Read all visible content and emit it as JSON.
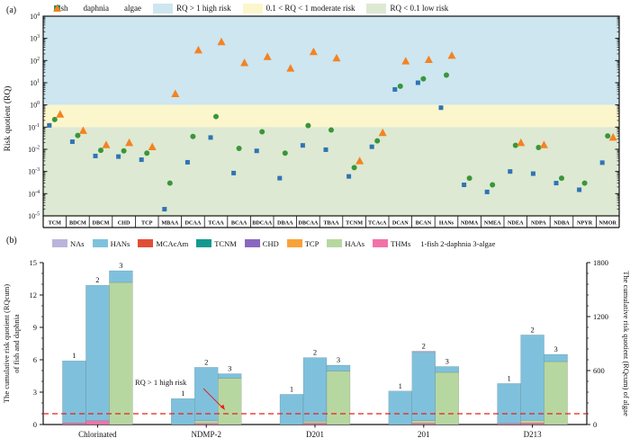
{
  "figure": {
    "panel_a_tag": "(a)",
    "panel_b_tag": "(b)"
  },
  "colors": {
    "fish": "#2f74b3",
    "daphnia": "#3a9639",
    "algae": "#f58220",
    "band_high": "#cde6f0",
    "band_moderate": "#fcf6cd",
    "band_low": "#dde9d3",
    "ref_line_red": "#e62219",
    "components": {
      "NAs": "#bab4da",
      "HANs": "#7fc1dc",
      "MCAcAm": "#e04f35",
      "TCNM": "#12998e",
      "CHD": "#8a68c0",
      "TCP": "#f9a23a",
      "HAAs": "#b7d7a1",
      "THMs": "#f272a8"
    }
  },
  "chart_data": [
    {
      "type": "scatter",
      "title": "",
      "ylabel": "Risk quotient (RQ)",
      "y_scale": "log",
      "y_tick_exponents": [
        4,
        3,
        2,
        1,
        0,
        -1,
        -2,
        -3,
        -4,
        -5
      ],
      "ylim_exponents": [
        -5,
        4
      ],
      "bands": [
        {
          "label": "RQ > 1 high risk",
          "from_exp": 0,
          "to_exp": 4
        },
        {
          "label": "0.1 < RQ < 1 moderate risk",
          "from_exp": -1,
          "to_exp": 0
        },
        {
          "label": "RQ < 0.1 low risk",
          "from_exp": -5,
          "to_exp": -1
        }
      ],
      "legend": [
        {
          "label": "fish",
          "marker": "square"
        },
        {
          "label": "daphnia",
          "marker": "circle"
        },
        {
          "label": "algae",
          "marker": "triangle"
        },
        {
          "label": "RQ > 1 high risk",
          "marker": "band_high"
        },
        {
          "label": "0.1 < RQ < 1 moderate risk",
          "marker": "band_moderate"
        },
        {
          "label": "RQ < 0.1 low risk",
          "marker": "band_low"
        }
      ],
      "categories": [
        "TCM",
        "BDCM",
        "DBCM",
        "CHD",
        "TCP",
        "MBAA",
        "DCAA",
        "TCAA",
        "BCAA",
        "BDCAA",
        "DBAA",
        "DBCAA",
        "TBAA",
        "TCNM",
        "TCAcA",
        "DCAN",
        "BCAN",
        "HANs",
        "NDMA",
        "NMEA",
        "NDEA",
        "NDPA",
        "NDBA",
        "NPYR",
        "NMOR"
      ],
      "series": [
        {
          "name": "fish",
          "values": [
            0.12,
            0.022,
            0.005,
            0.0047,
            0.0034,
            2e-05,
            0.0026,
            0.034,
            0.00085,
            0.0085,
            0.0005,
            0.015,
            0.0096,
            0.0006,
            0.013,
            5,
            10,
            0.75,
            0.00025,
            0.00012,
            0.001,
            0.0008,
            0.0003,
            0.00015,
            0.0025
          ]
        },
        {
          "name": "daphnia",
          "values": [
            0.22,
            0.042,
            0.009,
            0.0085,
            0.0067,
            0.0003,
            0.038,
            0.3,
            0.011,
            0.062,
            0.0067,
            0.117,
            0.074,
            0.0015,
            0.024,
            7,
            15,
            22,
            0.0005,
            0.00025,
            0.015,
            0.012,
            0.0005,
            0.0003,
            0.04
          ]
        },
        {
          "name": "algae",
          "values": [
            0.38,
            0.07,
            0.016,
            0.02,
            0.013,
            3.2,
            300,
            700,
            80,
            150,
            45,
            250,
            130,
            0.003,
            0.056,
            95,
            110,
            170,
            null,
            null,
            0.02,
            0.016,
            null,
            null,
            0.035
          ]
        }
      ]
    },
    {
      "type": "bar",
      "subtype": "stacked-grouped-dual-axis",
      "categories": [
        "Chlorinated",
        "NDMP-2",
        "D201",
        "201",
        "D213"
      ],
      "bar_number_labels": [
        "1",
        "2",
        "3"
      ],
      "left_axis": {
        "label_line1": "The cumulative risk quotient (RQcum)",
        "label_line2": "of fish and daphnia",
        "ticks": [
          0,
          3,
          6,
          9,
          12,
          15
        ],
        "lim": [
          0,
          15
        ]
      },
      "right_axis": {
        "label": "The cumulative risk quotient (RQcum) of algae",
        "ticks": [
          0,
          600,
          1200,
          1800
        ],
        "lim": [
          0,
          1800
        ]
      },
      "legend": [
        "NAs",
        "HANs",
        "MCAcAm",
        "TCNM",
        "CHD",
        "TCP",
        "HAAs",
        "THMs"
      ],
      "legend_note": "1-fish 2-daphnia 3-algae",
      "ref_line": {
        "value": 1,
        "axis": "left",
        "label": "RQ > 1 high risk"
      },
      "groups": [
        {
          "category": "Chlorinated",
          "bars": [
            {
              "species": "fish",
              "axis": "left",
              "segments": [
                [
                  "THMs",
                  0.15
                ],
                [
                  "HANs",
                  5.75
                ]
              ]
            },
            {
              "species": "daphnia",
              "axis": "left",
              "segments": [
                [
                  "THMs",
                  0.35
                ],
                [
                  "HANs",
                  12.55
                ]
              ]
            },
            {
              "species": "algae",
              "axis": "right",
              "segments": [
                [
                  "HAAs",
                  1580
                ],
                [
                  "HANs",
                  130
                ]
              ]
            }
          ]
        },
        {
          "category": "NDMP-2",
          "bars": [
            {
              "species": "fish",
              "axis": "left",
              "segments": [
                [
                  "HANs",
                  2.4
                ]
              ]
            },
            {
              "species": "daphnia",
              "axis": "left",
              "segments": [
                [
                  "THMs",
                  0.1
                ],
                [
                  "HAAs",
                  0.25
                ],
                [
                  "HANs",
                  4.95
                ]
              ]
            },
            {
              "species": "algae",
              "axis": "right",
              "segments": [
                [
                  "HAAs",
                  515
                ],
                [
                  "HANs",
                  50
                ]
              ]
            }
          ]
        },
        {
          "category": "D201",
          "bars": [
            {
              "species": "fish",
              "axis": "left",
              "segments": [
                [
                  "HANs",
                  2.8
                ]
              ]
            },
            {
              "species": "daphnia",
              "axis": "left",
              "segments": [
                [
                  "THMs",
                  0.12
                ],
                [
                  "HAAs",
                  0.2
                ],
                [
                  "HANs",
                  5.88
                ]
              ]
            },
            {
              "species": "algae",
              "axis": "right",
              "segments": [
                [
                  "HAAs",
                  595
                ],
                [
                  "HANs",
                  65
                ]
              ]
            }
          ]
        },
        {
          "category": "201",
          "bars": [
            {
              "species": "fish",
              "axis": "left",
              "segments": [
                [
                  "HANs",
                  3.1
                ]
              ]
            },
            {
              "species": "daphnia",
              "axis": "left",
              "segments": [
                [
                  "THMs",
                  0.12
                ],
                [
                  "HAAs",
                  0.25
                ],
                [
                  "HANs",
                  6.31
                ],
                [
                  "NAs",
                  0.12
                ]
              ]
            },
            {
              "species": "algae",
              "axis": "right",
              "segments": [
                [
                  "HAAs",
                  580
                ],
                [
                  "HANs",
                  65
                ]
              ]
            }
          ]
        },
        {
          "category": "D213",
          "bars": [
            {
              "species": "fish",
              "axis": "left",
              "segments": [
                [
                  "THMs",
                  0.1
                ],
                [
                  "HANs",
                  3.7
                ]
              ]
            },
            {
              "species": "daphnia",
              "axis": "left",
              "segments": [
                [
                  "THMs",
                  0.15
                ],
                [
                  "HAAs",
                  0.25
                ],
                [
                  "HANs",
                  7.9
                ]
              ]
            },
            {
              "species": "algae",
              "axis": "right",
              "segments": [
                [
                  "HAAs",
                  700
                ],
                [
                  "HANs",
                  80
                ]
              ]
            }
          ]
        }
      ]
    }
  ]
}
